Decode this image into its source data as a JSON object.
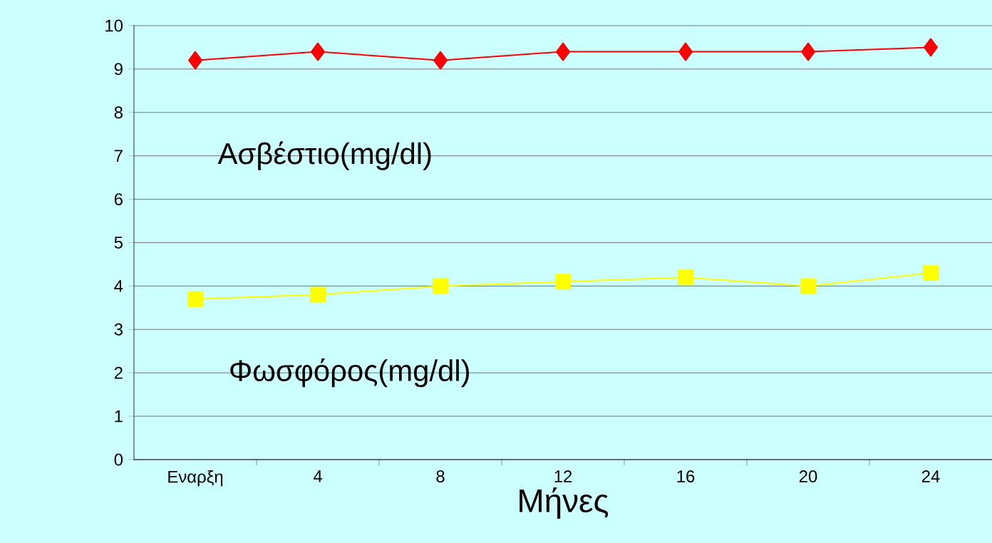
{
  "chart_data": {
    "type": "line",
    "xlabel": "Μήνες",
    "categories": [
      "Εναρξη",
      "4",
      "8",
      "12",
      "16",
      "20",
      "24"
    ],
    "series": [
      {
        "name": "Ασβέστιο(mg/dl)",
        "color": "#ff0000",
        "marker": "diamond",
        "values": [
          9.2,
          9.4,
          9.2,
          9.4,
          9.4,
          9.4,
          9.5
        ]
      },
      {
        "name": "Φωσφόρος(mg/dl)",
        "color": "#ffff00",
        "marker": "square",
        "values": [
          3.7,
          3.8,
          4.0,
          4.1,
          4.2,
          4.0,
          4.3
        ]
      }
    ],
    "ylim": [
      0,
      10
    ],
    "yticks": [
      0,
      1,
      2,
      3,
      4,
      5,
      6,
      7,
      8,
      9,
      10
    ],
    "grid": "y",
    "line_style": "solid"
  }
}
